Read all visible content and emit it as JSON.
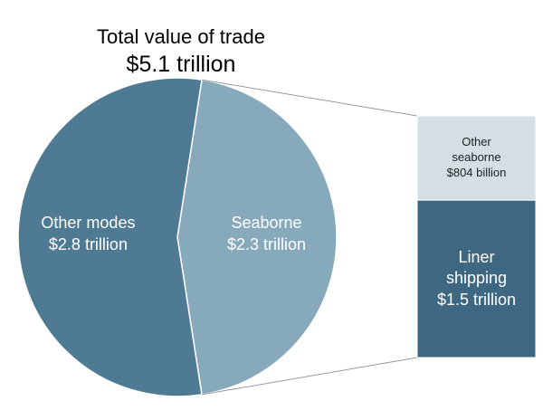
{
  "chart_data": [
    {
      "type": "pie",
      "title": "Total value of trade",
      "subtitle": "$5.1 trillion",
      "categories": [
        "Other modes",
        "Seaborne"
      ],
      "values": [
        2.8,
        2.3
      ],
      "value_labels": [
        "$2.8 trillion",
        "$2.3 trillion"
      ],
      "colors": [
        "#4e7a93",
        "#86aabb"
      ]
    },
    {
      "type": "bar",
      "categories": [
        "Other seaborne",
        "Liner shipping"
      ],
      "values": [
        0.804,
        1.5
      ],
      "value_labels": [
        "$804 billion",
        "$1.5 trillion"
      ],
      "colors": [
        "#d3dee5",
        "#3e6782"
      ],
      "text_colors": [
        "#222222",
        "#ffffff"
      ]
    }
  ]
}
